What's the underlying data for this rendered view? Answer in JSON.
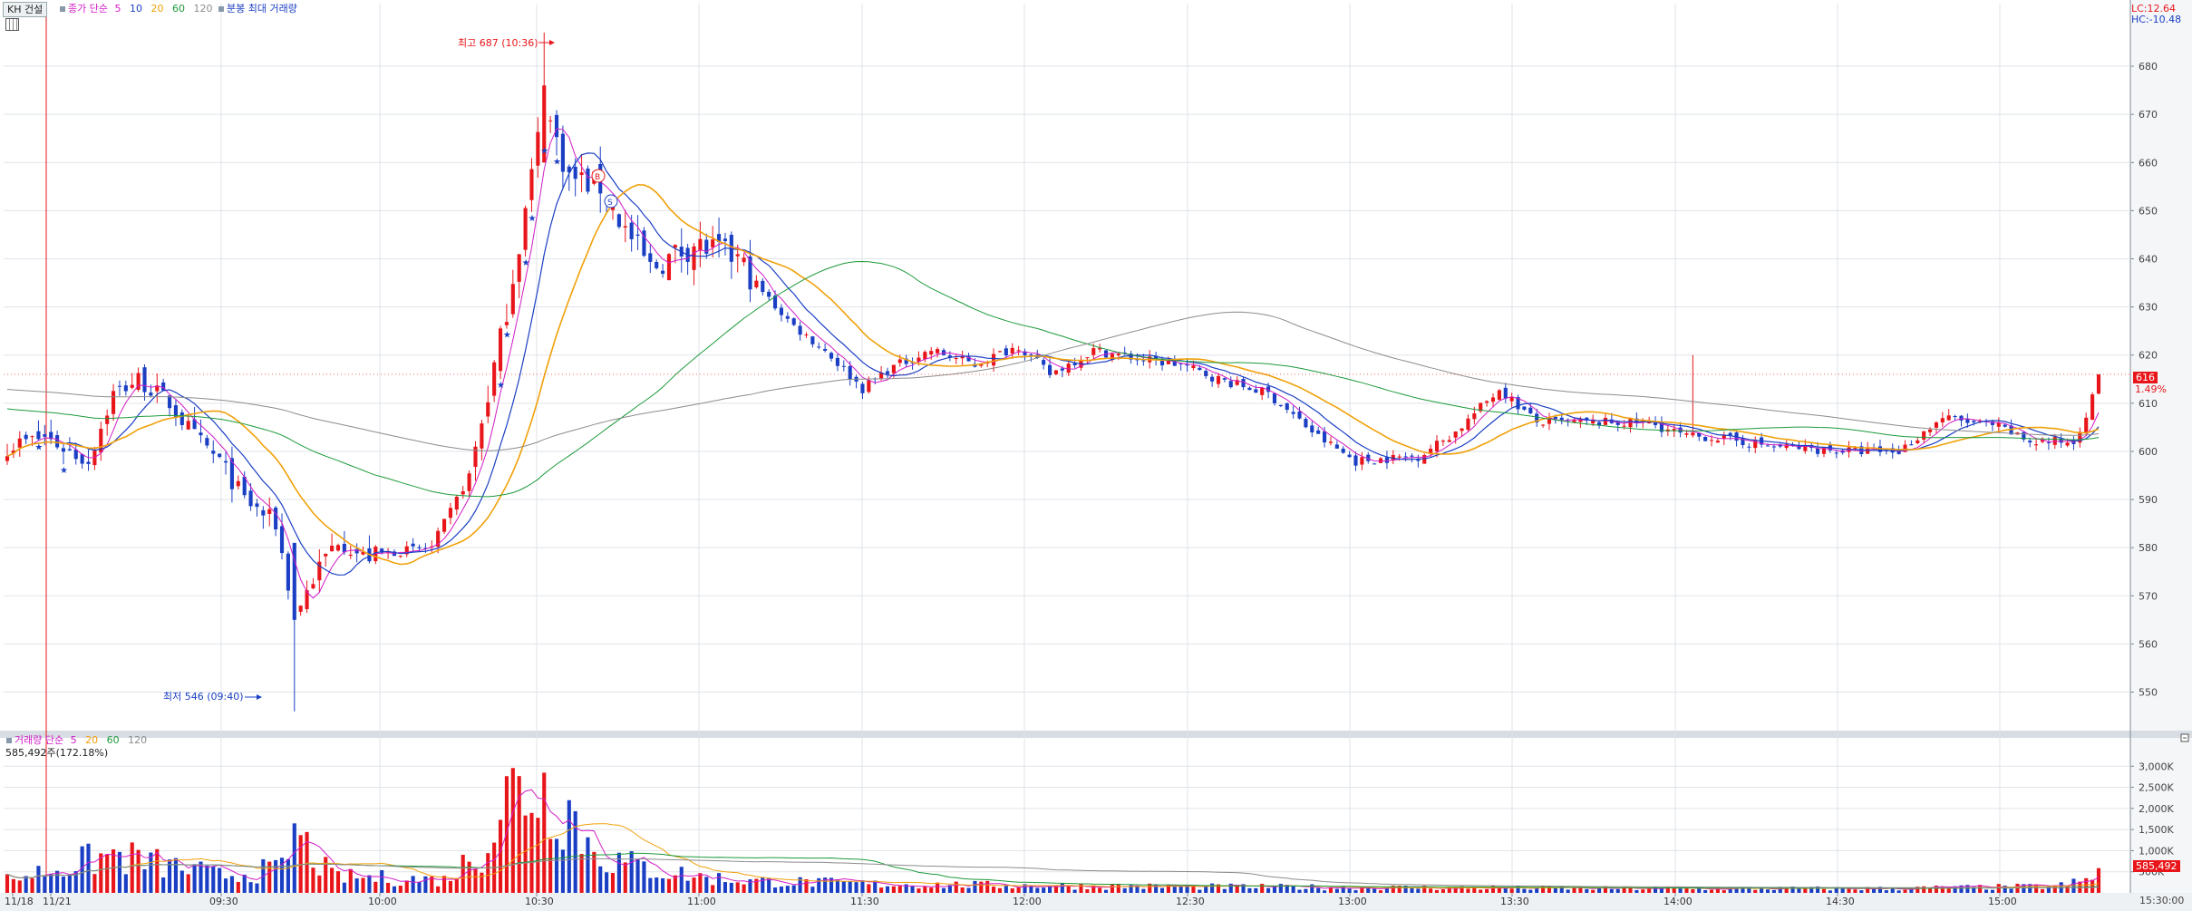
{
  "header": {
    "stock_button": "KH 건설",
    "price_legend": {
      "label": "종가 단순",
      "ma": [
        "5",
        "10",
        "20",
        "60",
        "120"
      ]
    },
    "extra_label": "분봉 최대 거래량",
    "lc": "LC:12.64",
    "hc": "HC:-10.48",
    "volume_legend": {
      "label": "거래량 단순",
      "ma": [
        "5",
        "20",
        "60",
        "120"
      ]
    },
    "volume_reading": "585,492주(172.18%)"
  },
  "annotations": {
    "high": "최고 687 (10:36)",
    "low": "최저 546 (09:40)",
    "marker_b": "B",
    "marker_s": "S"
  },
  "colors": {
    "up": "#e8161b",
    "down": "#1a3fc4",
    "ma5": "#d21cc7",
    "ma10": "#1a3fc4",
    "ma20": "#f0a10a",
    "ma60": "#1c9a3a",
    "ma120": "#8c8c8c",
    "grid": "#dfe3e8",
    "axis": "#7f8a96"
  },
  "price_axis": {
    "ticks": [
      "680",
      "670",
      "660",
      "650",
      "640",
      "630",
      "620",
      "610",
      "600",
      "590",
      "580",
      "570",
      "560",
      "550"
    ]
  },
  "price_tags": {
    "current": "616",
    "change": "1.49%"
  },
  "volume_axis": {
    "ticks": [
      "3,000K",
      "2,500K",
      "2,000K",
      "1,500K",
      "1,000K",
      "500K"
    ]
  },
  "volume_tag": "585,492",
  "time_axis": {
    "labels": [
      "11/18",
      "11/21",
      "09:30",
      "10:00",
      "10:30",
      "11:00",
      "11:30",
      "12:00",
      "12:30",
      "13:00",
      "13:30",
      "14:00",
      "14:30",
      "15:00"
    ],
    "end_label": "15:30:00"
  },
  "chart_data": {
    "type": "candlestick",
    "interval": "1-minute",
    "price_range": [
      542,
      693
    ],
    "volume_range": [
      0,
      3500000
    ],
    "high": {
      "value": 687,
      "time": "10:36"
    },
    "low": {
      "value": 546,
      "time": "09:40"
    },
    "current_price": 616,
    "change_percent": 1.49,
    "last_volume": 585492,
    "moving_averages": [
      "5",
      "10",
      "20",
      "60",
      "120"
    ],
    "price_anchors": [
      [
        0,
        601
      ],
      [
        6,
        603
      ],
      [
        10,
        600
      ],
      [
        13,
        598
      ],
      [
        17,
        612
      ],
      [
        21,
        615
      ],
      [
        26,
        610
      ],
      [
        30,
        603
      ],
      [
        34,
        598
      ],
      [
        38,
        590
      ],
      [
        43,
        585
      ],
      [
        46,
        566
      ],
      [
        50,
        576
      ],
      [
        53,
        582
      ],
      [
        57,
        578
      ],
      [
        61,
        579
      ],
      [
        68,
        580
      ],
      [
        74,
        595
      ],
      [
        79,
        623
      ],
      [
        83,
        650
      ],
      [
        86,
        672
      ],
      [
        90,
        657
      ],
      [
        95,
        655
      ],
      [
        99,
        646
      ],
      [
        103,
        638
      ],
      [
        110,
        643
      ],
      [
        117,
        640
      ],
      [
        121,
        633
      ],
      [
        126,
        626
      ],
      [
        131,
        621
      ],
      [
        137,
        613
      ],
      [
        141,
        617
      ],
      [
        148,
        621
      ],
      [
        155,
        618
      ],
      [
        162,
        622
      ],
      [
        167,
        616
      ],
      [
        174,
        621
      ],
      [
        182,
        619
      ],
      [
        188,
        618
      ],
      [
        194,
        615
      ],
      [
        202,
        612
      ],
      [
        210,
        603
      ],
      [
        216,
        598
      ],
      [
        226,
        599
      ],
      [
        232,
        604
      ],
      [
        239,
        613
      ],
      [
        245,
        606
      ],
      [
        257,
        606
      ],
      [
        263,
        606
      ],
      [
        269,
        603
      ],
      [
        273,
        603
      ],
      [
        283,
        601
      ],
      [
        296,
        600
      ],
      [
        303,
        600
      ],
      [
        310,
        607
      ],
      [
        319,
        605
      ],
      [
        324,
        602
      ],
      [
        331,
        602
      ],
      [
        335,
        614
      ]
    ],
    "volume_anchors": [
      [
        0,
        12
      ],
      [
        17,
        35
      ],
      [
        23,
        28
      ],
      [
        34,
        16
      ],
      [
        44,
        22
      ],
      [
        46,
        55
      ],
      [
        52,
        15
      ],
      [
        70,
        12
      ],
      [
        76,
        40
      ],
      [
        80,
        90
      ],
      [
        84,
        100
      ],
      [
        87,
        92
      ],
      [
        90,
        80
      ],
      [
        93,
        45
      ],
      [
        97,
        30
      ],
      [
        103,
        22
      ],
      [
        112,
        14
      ],
      [
        120,
        11
      ],
      [
        140,
        8
      ],
      [
        180,
        6
      ],
      [
        220,
        5
      ],
      [
        260,
        4
      ],
      [
        300,
        4
      ],
      [
        328,
        6
      ],
      [
        334,
        12
      ],
      [
        335,
        18
      ]
    ]
  }
}
